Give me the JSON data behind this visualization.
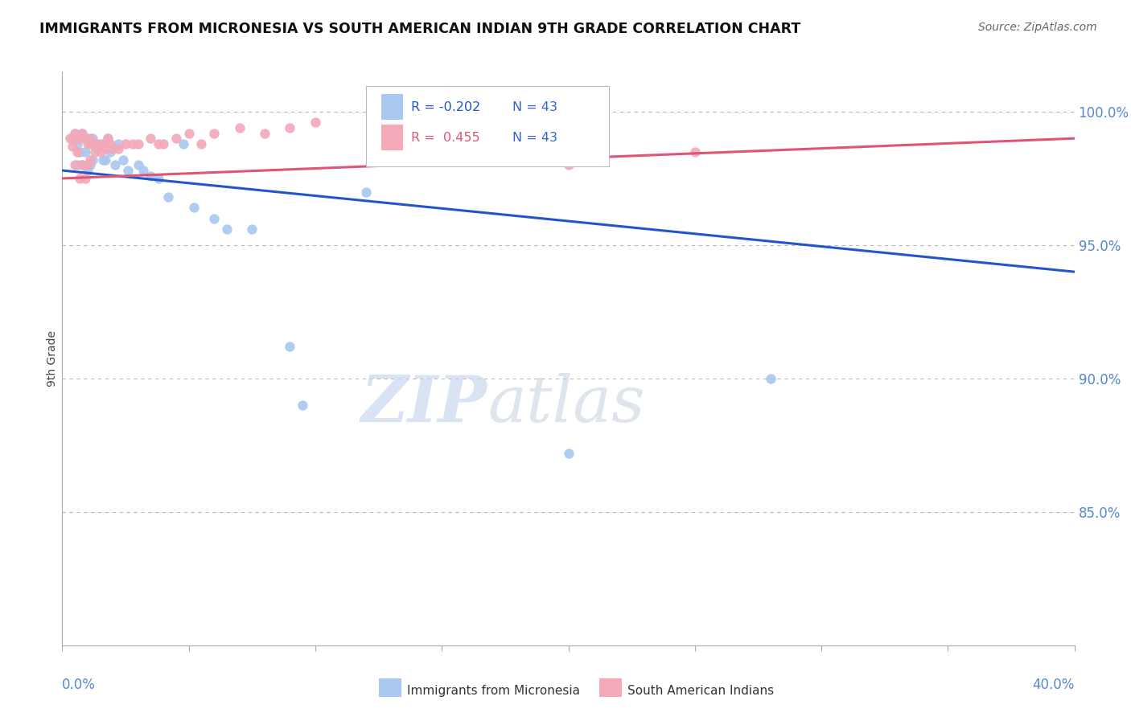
{
  "title": "IMMIGRANTS FROM MICRONESIA VS SOUTH AMERICAN INDIAN 9TH GRADE CORRELATION CHART",
  "source": "Source: ZipAtlas.com",
  "ylabel": "9th Grade",
  "r_blue": "-0.202",
  "r_pink": "0.455",
  "n_blue": "43",
  "n_pink": "43",
  "blue_scatter_x": [
    0.004,
    0.005,
    0.006,
    0.006,
    0.007,
    0.007,
    0.008,
    0.008,
    0.009,
    0.009,
    0.01,
    0.01,
    0.011,
    0.011,
    0.012,
    0.012,
    0.013,
    0.014,
    0.015,
    0.016,
    0.017,
    0.018,
    0.019,
    0.02,
    0.021,
    0.022,
    0.024,
    0.026,
    0.03,
    0.032,
    0.035,
    0.038,
    0.042,
    0.048,
    0.052,
    0.06,
    0.065,
    0.075,
    0.09,
    0.095,
    0.12,
    0.2,
    0.28
  ],
  "blue_scatter_y": [
    0.99,
    0.992,
    0.988,
    0.98,
    0.99,
    0.985,
    0.992,
    0.98,
    0.99,
    0.985,
    0.99,
    0.978,
    0.988,
    0.98,
    0.99,
    0.982,
    0.988,
    0.986,
    0.988,
    0.982,
    0.982,
    0.99,
    0.985,
    0.986,
    0.98,
    0.988,
    0.982,
    0.978,
    0.98,
    0.978,
    0.976,
    0.975,
    0.968,
    0.988,
    0.964,
    0.96,
    0.956,
    0.956,
    0.912,
    0.89,
    0.97,
    0.872,
    0.9
  ],
  "pink_scatter_x": [
    0.003,
    0.004,
    0.005,
    0.005,
    0.006,
    0.006,
    0.007,
    0.007,
    0.008,
    0.008,
    0.009,
    0.009,
    0.01,
    0.01,
    0.011,
    0.011,
    0.012,
    0.013,
    0.014,
    0.015,
    0.016,
    0.017,
    0.018,
    0.019,
    0.02,
    0.022,
    0.025,
    0.028,
    0.03,
    0.035,
    0.038,
    0.04,
    0.045,
    0.05,
    0.055,
    0.06,
    0.07,
    0.08,
    0.09,
    0.1,
    0.15,
    0.2,
    0.25
  ],
  "pink_scatter_y": [
    0.99,
    0.987,
    0.992,
    0.98,
    0.99,
    0.985,
    0.99,
    0.975,
    0.992,
    0.98,
    0.99,
    0.975,
    0.988,
    0.98,
    0.99,
    0.982,
    0.988,
    0.985,
    0.988,
    0.985,
    0.988,
    0.986,
    0.99,
    0.988,
    0.986,
    0.986,
    0.988,
    0.988,
    0.988,
    0.99,
    0.988,
    0.988,
    0.99,
    0.992,
    0.988,
    0.992,
    0.994,
    0.992,
    0.994,
    0.996,
    0.998,
    0.98,
    0.985
  ],
  "blue_line_x": [
    0.0,
    0.4
  ],
  "blue_line_y": [
    0.978,
    0.94
  ],
  "pink_line_x": [
    0.0,
    0.4
  ],
  "pink_line_y": [
    0.975,
    0.99
  ],
  "xlim": [
    0.0,
    0.4
  ],
  "ylim": [
    0.8,
    1.015
  ],
  "ytick_values": [
    0.85,
    0.9,
    0.95,
    1.0
  ],
  "blue_color": "#A8C8F0",
  "pink_color": "#F4A8B8",
  "blue_line_color": "#2255CC",
  "pink_line_color": "#E05575",
  "watermark_zip": "ZIP",
  "watermark_atlas": "atlas",
  "background_color": "#FFFFFF",
  "grid_color": "#BBBBBB"
}
